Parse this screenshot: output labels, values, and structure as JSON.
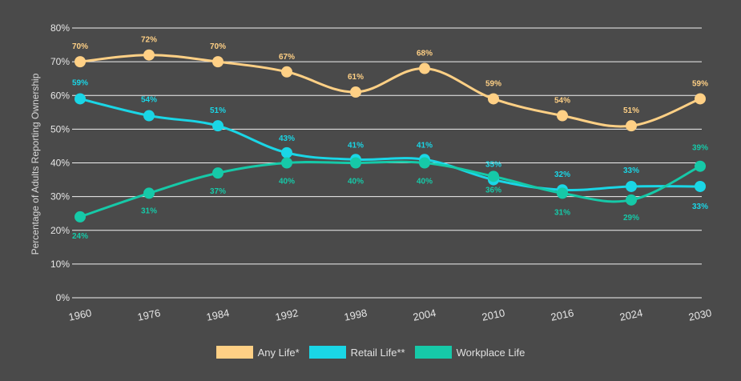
{
  "chart_data": {
    "type": "line",
    "title": "",
    "xlabel": "",
    "ylabel": "Percentage of Adults Reporting Ownership",
    "categories": [
      "1960",
      "1976",
      "1984",
      "1992",
      "1998",
      "2004",
      "2010",
      "2016",
      "2024",
      "2030"
    ],
    "y_ticks": [
      "0%",
      "10%",
      "20%",
      "30%",
      "40%",
      "50%",
      "60%",
      "70%",
      "80%"
    ],
    "ylim": [
      0,
      80
    ],
    "grid": true,
    "legend_position": "bottom",
    "series": [
      {
        "name": "Any Life*",
        "color": "#ffd085",
        "values": [
          70,
          72,
          70,
          67,
          61,
          68,
          59,
          54,
          51,
          59
        ],
        "labels": [
          "70%",
          "72%",
          "70%",
          "67%",
          "61%",
          "68%",
          "59%",
          "54%",
          "51%",
          "59%"
        ]
      },
      {
        "name": "Retail Life**",
        "color": "#1ad6e6",
        "values": [
          59,
          54,
          51,
          43,
          41,
          41,
          35,
          32,
          33,
          33
        ],
        "labels": [
          "59%",
          "54%",
          "51%",
          "43%",
          "41%",
          "41%",
          "35%",
          "32%",
          "33%",
          "33%"
        ]
      },
      {
        "name": "Workplace Life",
        "color": "#16c9a8",
        "values": [
          24,
          31,
          37,
          40,
          40,
          40,
          36,
          31,
          29,
          39
        ],
        "labels": [
          "24%",
          "31%",
          "37%",
          "40%",
          "40%",
          "40%",
          "36%",
          "31%",
          "29%",
          "39%"
        ]
      }
    ]
  }
}
